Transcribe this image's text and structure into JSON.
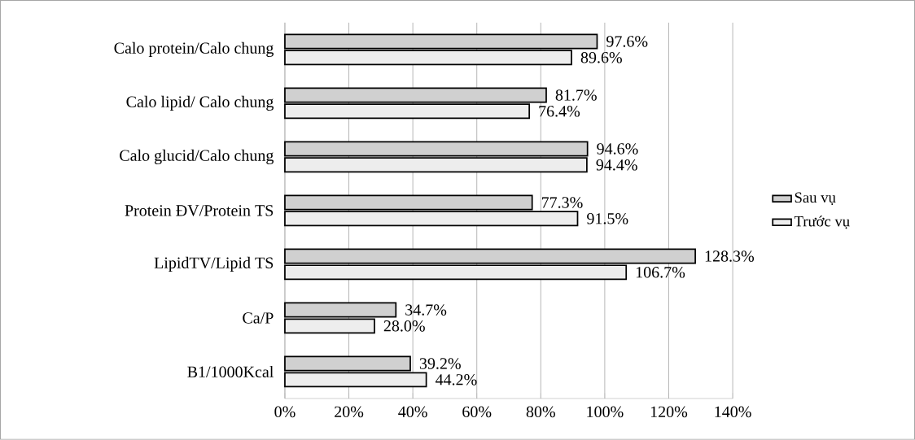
{
  "chart_data": {
    "type": "bar",
    "orientation": "horizontal",
    "categories": [
      "Calo protein/Calo chung",
      "Calo lipid/ Calo chung",
      "Calo glucid/Calo chung",
      "Protein ĐV/Protein TS",
      "LipidTV/Lipid TS",
      "Ca/P",
      "B1/1000Kcal"
    ],
    "series": [
      {
        "name": "Sau vụ",
        "color": "#d0d0d0",
        "values": [
          97.6,
          81.7,
          94.6,
          77.3,
          128.3,
          34.7,
          39.2
        ],
        "value_labels": [
          "97.6%",
          "81.7%",
          "94.6%",
          "77.3%",
          "128.3%",
          "34.7%",
          "39.2%"
        ]
      },
      {
        "name": "Trước vụ",
        "color": "#ededed",
        "values": [
          89.6,
          76.4,
          94.4,
          91.5,
          106.7,
          28.0,
          44.2
        ],
        "value_labels": [
          "89.6%",
          "76.4%",
          "94.4%",
          "91.5%",
          "106.7%",
          "28.0%",
          "44.2%"
        ]
      }
    ],
    "xlim": [
      0,
      140
    ],
    "xticks": [
      {
        "value": 0,
        "label": "0%"
      },
      {
        "value": 20,
        "label": "20%"
      },
      {
        "value": 40,
        "label": "40%"
      },
      {
        "value": 60,
        "label": "60%"
      },
      {
        "value": 80,
        "label": "80%"
      },
      {
        "value": 100,
        "label": "100%"
      },
      {
        "value": 120,
        "label": "120%"
      },
      {
        "value": 140,
        "label": "140%"
      }
    ],
    "grid": "x",
    "legend": "right"
  }
}
